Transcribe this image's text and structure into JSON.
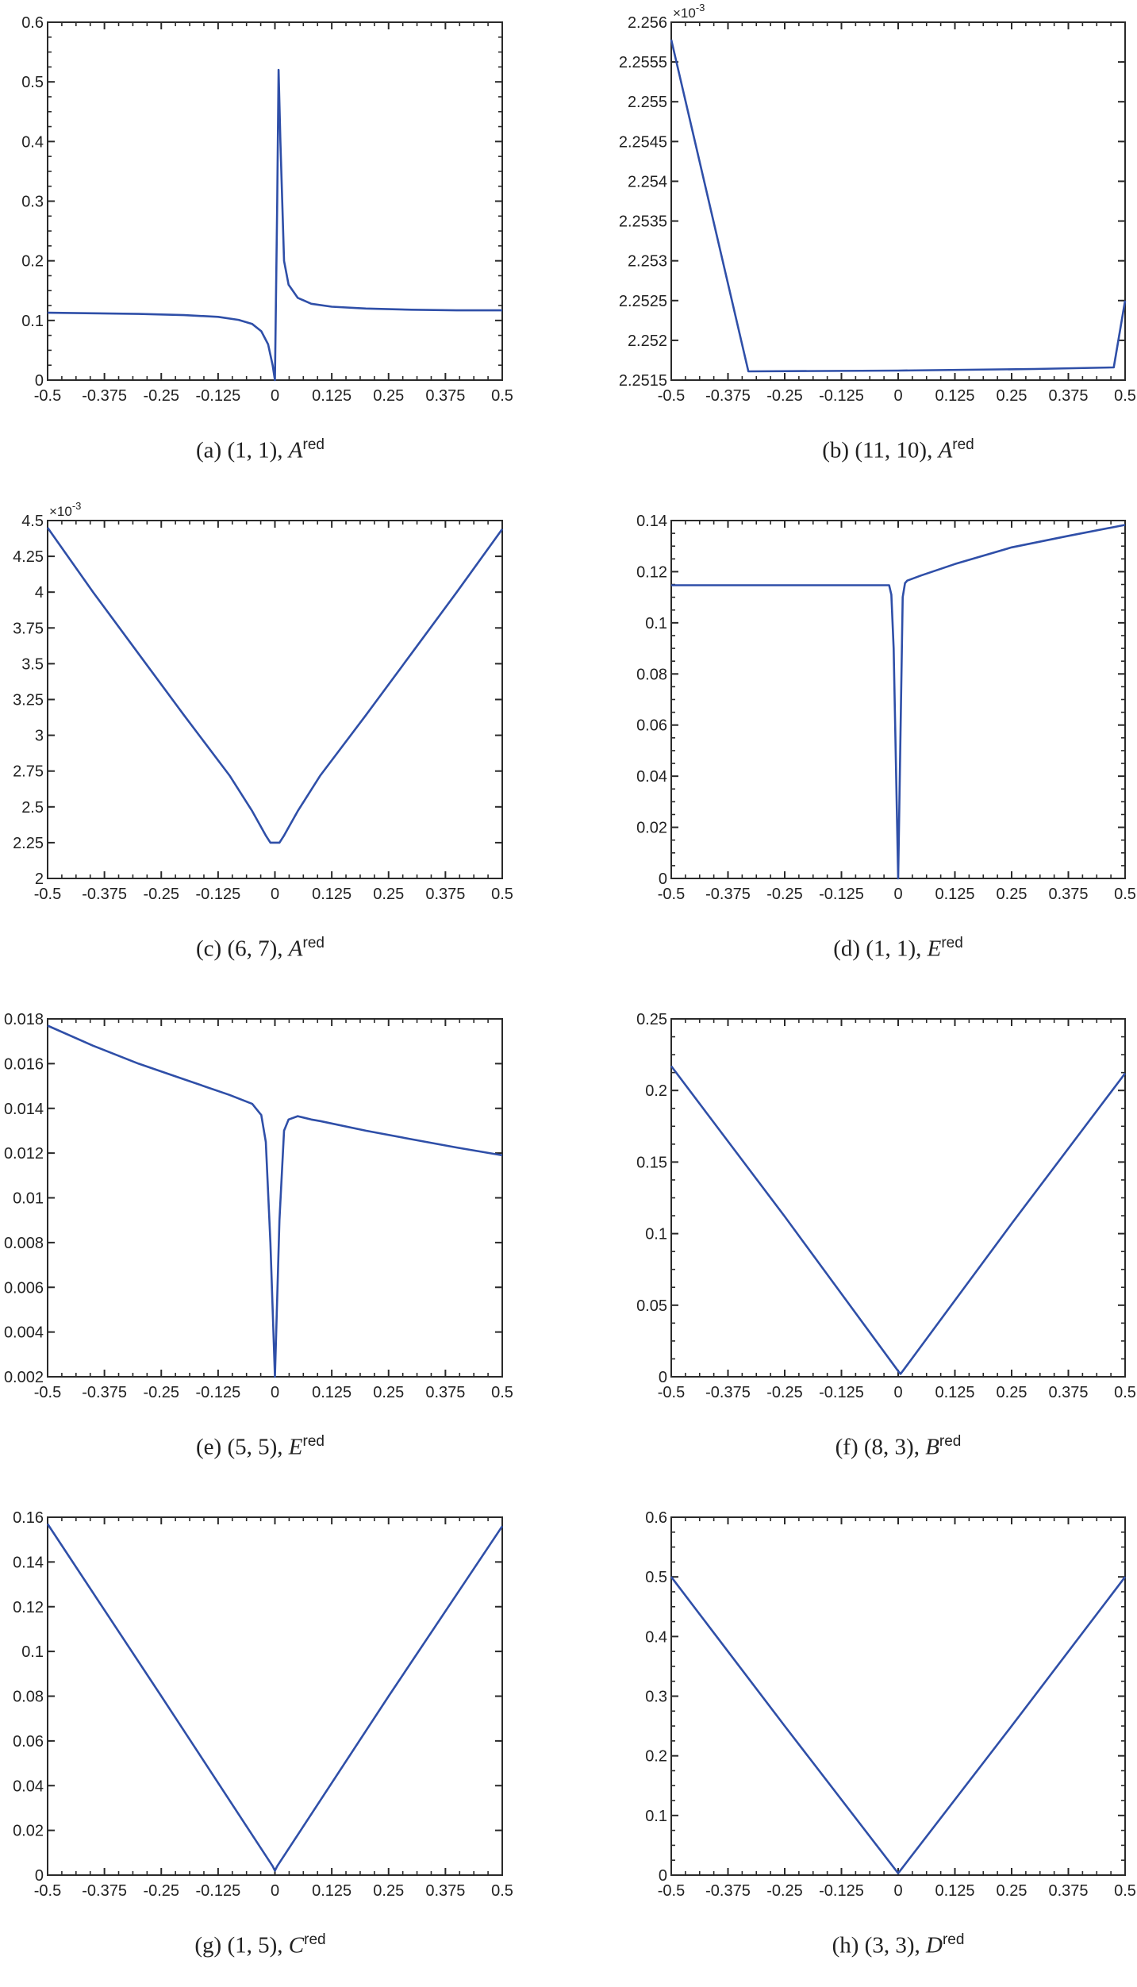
{
  "figure": {
    "line_color": "#2f4fa8",
    "axis_color": "#2a2a2a"
  },
  "panels": [
    {
      "id": "a",
      "label": "(a)",
      "pair": "(1, 1)",
      "symbol": "A",
      "sup": "red"
    },
    {
      "id": "b",
      "label": "(b)",
      "pair": "(11, 10)",
      "symbol": "A",
      "sup": "red"
    },
    {
      "id": "c",
      "label": "(c)",
      "pair": "(6, 7)",
      "symbol": "A",
      "sup": "red"
    },
    {
      "id": "d",
      "label": "(d)",
      "pair": "(1, 1)",
      "symbol": "E",
      "sup": "red"
    },
    {
      "id": "e",
      "label": "(e)",
      "pair": "(5, 5)",
      "symbol": "E",
      "sup": "red"
    },
    {
      "id": "f",
      "label": "(f)",
      "pair": "(8, 3)",
      "symbol": "B",
      "sup": "red"
    },
    {
      "id": "g",
      "label": "(g)",
      "pair": "(1, 5)",
      "symbol": "C",
      "sup": "red"
    },
    {
      "id": "h",
      "label": "(h)",
      "pair": "(3, 3)",
      "symbol": "D",
      "sup": "red"
    }
  ],
  "chart_data": [
    {
      "type": "line",
      "title": "(a) (1,1), A^red",
      "xlabel": "",
      "ylabel": "",
      "xlim": [
        -0.5,
        0.5
      ],
      "ylim": [
        0,
        0.6
      ],
      "grid": false,
      "xticks": [
        "-0.5",
        "-0.375",
        "-0.25",
        "-0.125",
        "0",
        "0.125",
        "0.25",
        "0.375",
        "0.5"
      ],
      "yticks": [
        "0",
        "0.1",
        "0.2",
        "0.3",
        "0.4",
        "0.5",
        "0.6"
      ],
      "multiplier": "",
      "x": [
        -0.5,
        -0.4,
        -0.3,
        -0.2,
        -0.125,
        -0.08,
        -0.05,
        -0.03,
        -0.015,
        -0.005,
        0,
        0.005,
        0.008,
        0.012,
        0.02,
        0.03,
        0.05,
        0.08,
        0.125,
        0.2,
        0.3,
        0.4,
        0.5
      ],
      "y": [
        0.113,
        0.112,
        0.111,
        0.109,
        0.106,
        0.101,
        0.094,
        0.082,
        0.06,
        0.025,
        0.0,
        0.3,
        0.52,
        0.4,
        0.2,
        0.16,
        0.138,
        0.128,
        0.123,
        0.12,
        0.118,
        0.117,
        0.117
      ]
    },
    {
      "type": "line",
      "title": "(b) (11,10), A^red",
      "xlabel": "",
      "ylabel": "",
      "xlim": [
        -0.5,
        0.5
      ],
      "ylim": [
        2.2515,
        2.256
      ],
      "grid": false,
      "xticks": [
        "-0.5",
        "-0.375",
        "-0.25",
        "-0.125",
        "0",
        "0.125",
        "0.25",
        "0.375",
        "0.5"
      ],
      "yticks": [
        "2.2515",
        "2.252",
        "2.2525",
        "2.253",
        "2.2535",
        "2.254",
        "2.2545",
        "2.255",
        "2.2555",
        "2.256"
      ],
      "multiplier": "×10^-3",
      "x": [
        -0.5,
        -0.33,
        0.0,
        0.3,
        0.475,
        0.5
      ],
      "y": [
        2.25578,
        2.25161,
        2.25162,
        2.25164,
        2.25166,
        2.2525
      ]
    },
    {
      "type": "line",
      "title": "(c) (6,7), A^red",
      "xlabel": "",
      "ylabel": "",
      "xlim": [
        -0.5,
        0.5
      ],
      "ylim": [
        2,
        4.5
      ],
      "grid": false,
      "xticks": [
        "-0.5",
        "-0.375",
        "-0.25",
        "-0.125",
        "0",
        "0.125",
        "0.25",
        "0.375",
        "0.5"
      ],
      "yticks": [
        "2",
        "2.25",
        "2.5",
        "2.75",
        "3",
        "3.25",
        "3.5",
        "3.75",
        "4",
        "4.25",
        "4.5"
      ],
      "multiplier": "×10^-3",
      "x": [
        -0.5,
        -0.4,
        -0.3,
        -0.2,
        -0.1,
        -0.05,
        -0.02,
        -0.01,
        0.01,
        0.02,
        0.05,
        0.1,
        0.2,
        0.3,
        0.4,
        0.5
      ],
      "y": [
        4.45,
        4.0,
        3.57,
        3.14,
        2.72,
        2.47,
        2.3,
        2.25,
        2.25,
        2.3,
        2.47,
        2.72,
        3.14,
        3.57,
        4.0,
        4.44
      ]
    },
    {
      "type": "line",
      "title": "(d) (1,1), E^red",
      "xlabel": "",
      "ylabel": "",
      "xlim": [
        -0.5,
        0.5
      ],
      "ylim": [
        0,
        0.14
      ],
      "grid": false,
      "xticks": [
        "-0.5",
        "-0.375",
        "-0.25",
        "-0.125",
        "0",
        "0.125",
        "0.25",
        "0.375",
        "0.5"
      ],
      "yticks": [
        "0",
        "0.02",
        "0.04",
        "0.06",
        "0.08",
        "0.1",
        "0.12",
        "0.14"
      ],
      "multiplier": "",
      "x": [
        -0.5,
        -0.3,
        -0.1,
        -0.02,
        -0.015,
        -0.01,
        0,
        0.01,
        0.015,
        0.02,
        0.05,
        0.125,
        0.25,
        0.375,
        0.5
      ],
      "y": [
        0.1147,
        0.1147,
        0.1147,
        0.1147,
        0.111,
        0.09,
        0.0,
        0.11,
        0.1155,
        0.1165,
        0.1185,
        0.123,
        0.1295,
        0.134,
        0.1383
      ]
    },
    {
      "type": "line",
      "title": "(e) (5,5), E^red",
      "xlabel": "",
      "ylabel": "",
      "xlim": [
        -0.5,
        0.5
      ],
      "ylim": [
        0.002,
        0.018
      ],
      "grid": false,
      "xticks": [
        "-0.5",
        "-0.375",
        "-0.25",
        "-0.125",
        "0",
        "0.125",
        "0.25",
        "0.375",
        "0.5"
      ],
      "yticks": [
        "0.002",
        "0.004",
        "0.006",
        "0.008",
        "0.01",
        "0.012",
        "0.014",
        "0.016",
        "0.018"
      ],
      "multiplier": "",
      "x": [
        -0.5,
        -0.4,
        -0.3,
        -0.2,
        -0.1,
        -0.05,
        -0.03,
        -0.02,
        -0.01,
        0,
        0.01,
        0.02,
        0.03,
        0.05,
        0.08,
        0.1,
        0.2,
        0.3,
        0.4,
        0.5
      ],
      "y": [
        0.0177,
        0.0168,
        0.016,
        0.0153,
        0.0146,
        0.0142,
        0.0137,
        0.0125,
        0.008,
        0.002,
        0.009,
        0.013,
        0.0135,
        0.01365,
        0.0135,
        0.01343,
        0.013,
        0.01262,
        0.01225,
        0.0119
      ]
    },
    {
      "type": "line",
      "title": "(f) (8,3), B^red",
      "xlabel": "",
      "ylabel": "",
      "xlim": [
        -0.5,
        0.5
      ],
      "ylim": [
        0,
        0.25
      ],
      "grid": false,
      "xticks": [
        "-0.5",
        "-0.375",
        "-0.25",
        "-0.125",
        "0",
        "0.125",
        "0.25",
        "0.375",
        "0.5"
      ],
      "yticks": [
        "0",
        "0.05",
        "0.1",
        "0.15",
        "0.2",
        "0.25"
      ],
      "multiplier": "",
      "x": [
        -0.5,
        -0.25,
        0.0,
        0.005,
        0.01,
        0.25,
        0.5
      ],
      "y": [
        0.217,
        0.112,
        0.004,
        0.002,
        0.004,
        0.107,
        0.212
      ]
    },
    {
      "type": "line",
      "title": "(g) (1,5), C^red",
      "xlabel": "",
      "ylabel": "",
      "xlim": [
        -0.5,
        0.5
      ],
      "ylim": [
        0,
        0.16
      ],
      "grid": false,
      "xticks": [
        "-0.5",
        "-0.375",
        "-0.25",
        "-0.125",
        "0",
        "0.125",
        "0.25",
        "0.375",
        "0.5"
      ],
      "yticks": [
        "0",
        "0.02",
        "0.04",
        "0.06",
        "0.08",
        "0.1",
        "0.12",
        "0.14",
        "0.16"
      ],
      "multiplier": "",
      "x": [
        -0.5,
        -0.25,
        -0.005,
        0.0,
        0.005,
        0.25,
        0.5
      ],
      "y": [
        0.157,
        0.08,
        0.004,
        0.002,
        0.004,
        0.08,
        0.156
      ]
    },
    {
      "type": "line",
      "title": "(h) (3,3), D^red",
      "xlabel": "",
      "ylabel": "",
      "xlim": [
        -0.5,
        0.5
      ],
      "ylim": [
        0,
        0.6
      ],
      "grid": false,
      "xticks": [
        "-0.5",
        "-0.375",
        "-0.25",
        "-0.125",
        "0",
        "0.125",
        "0.25",
        "0.375",
        "0.5"
      ],
      "yticks": [
        "0",
        "0.1",
        "0.2",
        "0.3",
        "0.4",
        "0.5",
        "0.6"
      ],
      "multiplier": "",
      "x": [
        -0.5,
        -0.25,
        0.0,
        0.25,
        0.5
      ],
      "y": [
        0.5,
        0.25,
        0.003,
        0.25,
        0.5
      ]
    }
  ]
}
